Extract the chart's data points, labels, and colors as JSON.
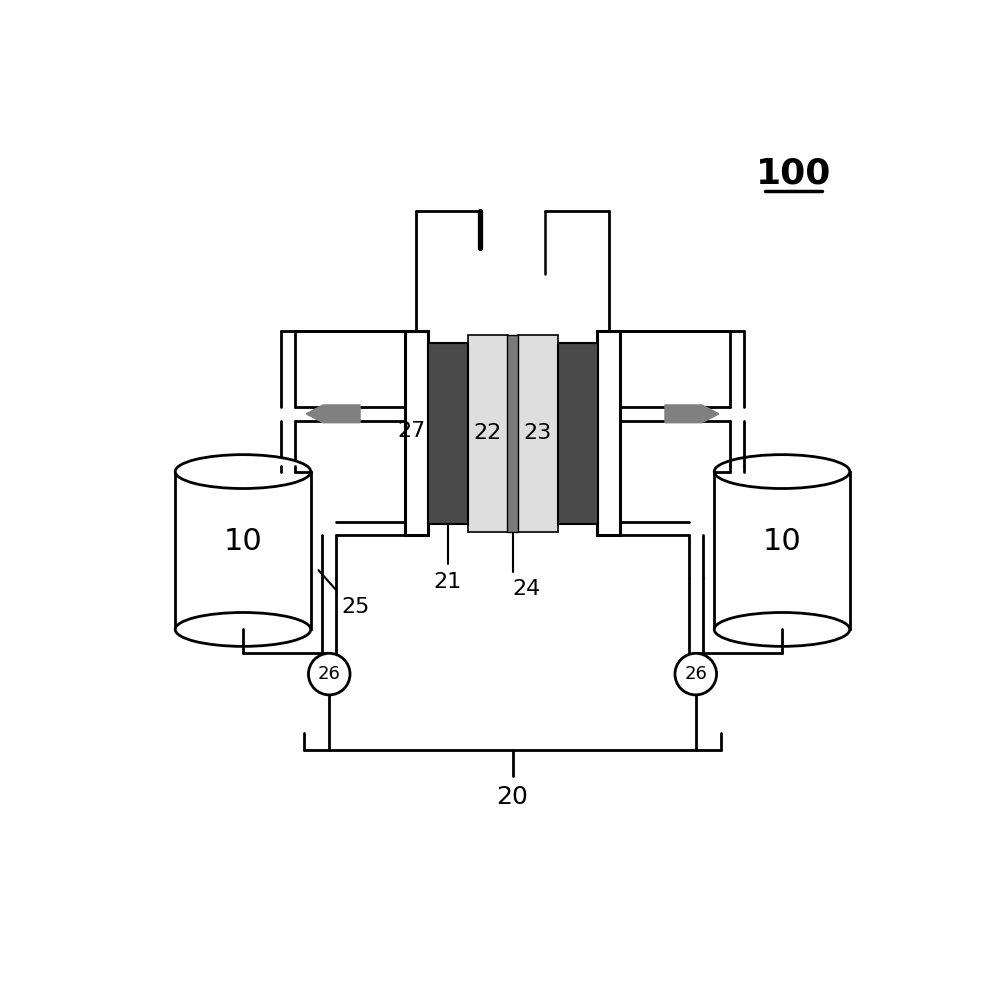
{
  "bg_color": "#ffffff",
  "line_color": "#000000",
  "dark_gray": "#4a4a4a",
  "light_gray": "#dedede",
  "sep_gray": "#7a7a7a",
  "arrow_gray": "#808080",
  "labels": {
    "10": "10",
    "20": "20",
    "21": "21",
    "22": "22",
    "23": "23",
    "24": "24",
    "25": "25",
    "26": "26",
    "27": "27",
    "100": "100"
  },
  "lw": 2.0
}
